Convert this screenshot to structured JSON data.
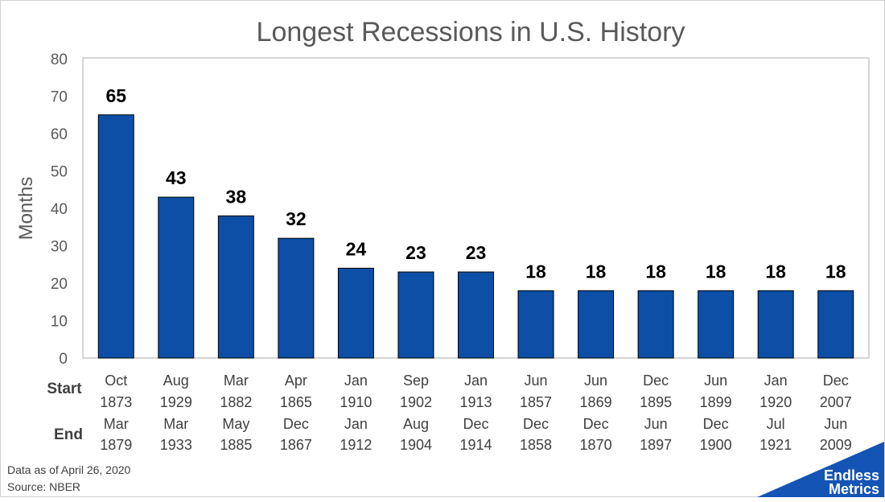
{
  "chart_data": {
    "type": "bar",
    "title": "Longest Recessions in U.S. History",
    "ylabel": "Months",
    "ylim": [
      0,
      80
    ],
    "yticks": [
      "0",
      "10",
      "20",
      "30",
      "40",
      "50",
      "60",
      "70",
      "80"
    ],
    "start_label": "Start",
    "end_label": "End",
    "categories": [
      {
        "start_month": "Oct",
        "start_year": "1873",
        "end_month": "Mar",
        "end_year": "1879"
      },
      {
        "start_month": "Aug",
        "start_year": "1929",
        "end_month": "Mar",
        "end_year": "1933"
      },
      {
        "start_month": "Mar",
        "start_year": "1882",
        "end_month": "May",
        "end_year": "1885"
      },
      {
        "start_month": "Apr",
        "start_year": "1865",
        "end_month": "Dec",
        "end_year": "1867"
      },
      {
        "start_month": "Jan",
        "start_year": "1910",
        "end_month": "Jan",
        "end_year": "1912"
      },
      {
        "start_month": "Sep",
        "start_year": "1902",
        "end_month": "Aug",
        "end_year": "1904"
      },
      {
        "start_month": "Jan",
        "start_year": "1913",
        "end_month": "Dec",
        "end_year": "1914"
      },
      {
        "start_month": "Jun",
        "start_year": "1857",
        "end_month": "Dec",
        "end_year": "1858"
      },
      {
        "start_month": "Jun",
        "start_year": "1869",
        "end_month": "Dec",
        "end_year": "1870"
      },
      {
        "start_month": "Dec",
        "start_year": "1895",
        "end_month": "Jun",
        "end_year": "1897"
      },
      {
        "start_month": "Jun",
        "start_year": "1899",
        "end_month": "Dec",
        "end_year": "1900"
      },
      {
        "start_month": "Jan",
        "start_year": "1920",
        "end_month": "Jul",
        "end_year": "1921"
      },
      {
        "start_month": "Dec",
        "start_year": "2007",
        "end_month": "Jun",
        "end_year": "2009"
      }
    ],
    "values": [
      65,
      43,
      38,
      32,
      24,
      23,
      23,
      18,
      18,
      18,
      18,
      18,
      18
    ],
    "grid": false,
    "bar_color": "#0d4fa6"
  },
  "footer": {
    "note": "Data as of April 26, 2020",
    "source": "Source: NBER"
  },
  "logo": {
    "line1": "Endless",
    "line2": "Metrics",
    "color": "#1454b4"
  }
}
